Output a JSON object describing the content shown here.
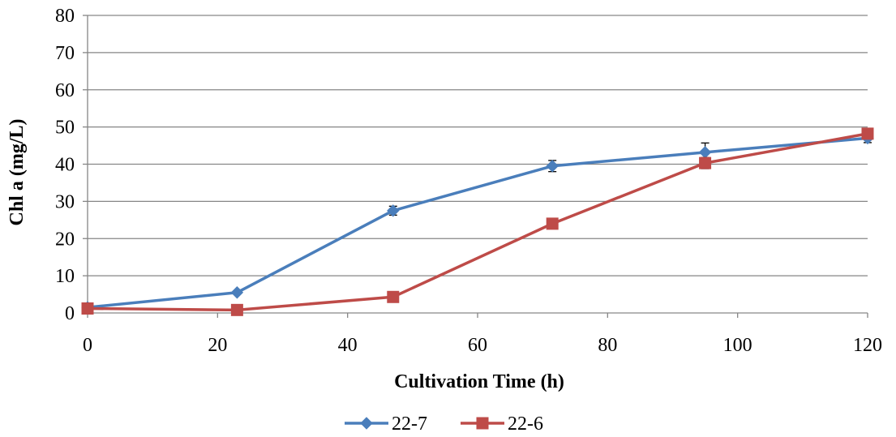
{
  "chart_data": {
    "type": "line",
    "title": "",
    "xlabel": "Cultivation Time (h)",
    "ylabel": "Chl a (mg/L)",
    "xlim": [
      0,
      120
    ],
    "ylim": [
      0,
      80
    ],
    "x_ticks": [
      0,
      20,
      40,
      60,
      80,
      100,
      120
    ],
    "y_ticks": [
      0,
      10,
      20,
      30,
      40,
      50,
      60,
      70,
      80
    ],
    "x_tick_labels": [
      "0",
      "20",
      "40",
      "60",
      "80",
      "100",
      "120"
    ],
    "y_tick_labels": [
      "0",
      "10",
      "20",
      "30",
      "40",
      "50",
      "60",
      "70",
      "80"
    ],
    "grid": "horizontal",
    "legend_position": "bottom",
    "series": [
      {
        "name": "22-7",
        "color": "#4A7EBB",
        "marker": "diamond",
        "x": [
          0,
          23,
          47,
          71.5,
          95,
          120
        ],
        "y": [
          1.5,
          5.5,
          27.5,
          39.5,
          43.2,
          47.0
        ],
        "err": [
          0.3,
          0.3,
          1.2,
          1.5,
          2.5,
          1.2
        ]
      },
      {
        "name": "22-6",
        "color": "#BE4B48",
        "marker": "square",
        "x": [
          0,
          23,
          47,
          71.5,
          95,
          120
        ],
        "y": [
          1.2,
          0.8,
          4.3,
          24.0,
          40.3,
          48.2
        ],
        "err": [
          0.3,
          0.3,
          0.4,
          0.6,
          1.5,
          0.8
        ]
      }
    ]
  }
}
